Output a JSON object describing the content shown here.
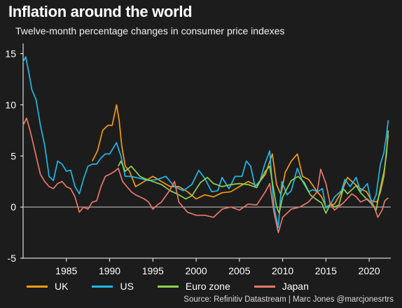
{
  "chart_data": {
    "type": "line",
    "title": "Inflation around the world",
    "subtitle": "Twelve-month percentage changes in consumer price indexes",
    "xlabel": "",
    "ylabel": "",
    "xlim": [
      1980,
      2022.5
    ],
    "ylim": [
      -5,
      16
    ],
    "x_ticks": [
      1985,
      1990,
      1995,
      2000,
      2005,
      2010,
      2015,
      2020
    ],
    "y_ticks": [
      -5,
      0,
      5,
      10,
      15
    ],
    "zero_line": true,
    "grid": false,
    "legend_position": "bottom",
    "source": "Source: Refinitiv Datastream |  Marc Jones @marcjonesrtrs",
    "series": [
      {
        "name": "UK",
        "color": "#f39c12",
        "points": [
          [
            1988,
            4.5
          ],
          [
            1988.6,
            5.5
          ],
          [
            1989.2,
            7.5
          ],
          [
            1989.8,
            8.0
          ],
          [
            1990.3,
            8.0
          ],
          [
            1990.8,
            10.0
          ],
          [
            1991.1,
            8.5
          ],
          [
            1991.4,
            6.0
          ],
          [
            1991.8,
            4.0
          ],
          [
            1992.3,
            3.5
          ],
          [
            1993,
            2.0
          ],
          [
            1994,
            2.5
          ],
          [
            1995,
            3.0
          ],
          [
            1996,
            2.5
          ],
          [
            1997,
            2.0
          ],
          [
            1998,
            2.0
          ],
          [
            1999,
            1.5
          ],
          [
            2000,
            0.8
          ],
          [
            2001,
            1.2
          ],
          [
            2002,
            1.0
          ],
          [
            2003,
            1.4
          ],
          [
            2004,
            1.5
          ],
          [
            2005,
            2.0
          ],
          [
            2006,
            2.5
          ],
          [
            2007,
            2.1
          ],
          [
            2008,
            3.2
          ],
          [
            2008.8,
            5.2
          ],
          [
            2009.3,
            2.2
          ],
          [
            2009.8,
            1.2
          ],
          [
            2010.3,
            3.4
          ],
          [
            2011.0,
            4.5
          ],
          [
            2011.7,
            5.2
          ],
          [
            2012.3,
            3.0
          ],
          [
            2013,
            2.7
          ],
          [
            2014,
            1.5
          ],
          [
            2014.5,
            1.0
          ],
          [
            2015,
            0.0
          ],
          [
            2015.5,
            0.2
          ],
          [
            2016,
            0.3
          ],
          [
            2016.8,
            1.5
          ],
          [
            2017.5,
            2.9
          ],
          [
            2018,
            2.5
          ],
          [
            2019,
            1.8
          ],
          [
            2019.7,
            1.5
          ],
          [
            2020.3,
            0.6
          ],
          [
            2020.9,
            0.5
          ],
          [
            2021.3,
            1.5
          ],
          [
            2021.7,
            3.0
          ],
          [
            2022.0,
            5.5
          ],
          [
            2022.2,
            7.0
          ]
        ]
      },
      {
        "name": "US",
        "color": "#1fb8e8",
        "points": [
          [
            1980,
            14.2
          ],
          [
            1980.3,
            14.7
          ],
          [
            1980.7,
            13.0
          ],
          [
            1981,
            11.5
          ],
          [
            1981.5,
            10.5
          ],
          [
            1982,
            8.0
          ],
          [
            1982.5,
            6.0
          ],
          [
            1983,
            3.0
          ],
          [
            1983.5,
            2.6
          ],
          [
            1984,
            4.5
          ],
          [
            1984.5,
            4.2
          ],
          [
            1985,
            3.5
          ],
          [
            1985.5,
            3.6
          ],
          [
            1986,
            2.0
          ],
          [
            1986.5,
            1.3
          ],
          [
            1987,
            2.8
          ],
          [
            1987.5,
            4.0
          ],
          [
            1988,
            4.2
          ],
          [
            1988.5,
            4.2
          ],
          [
            1989,
            4.8
          ],
          [
            1989.5,
            5.2
          ],
          [
            1990,
            5.2
          ],
          [
            1990.8,
            6.3
          ],
          [
            1991.3,
            5.0
          ],
          [
            1991.8,
            3.0
          ],
          [
            1992.5,
            3.0
          ],
          [
            1993.5,
            2.8
          ],
          [
            1994.5,
            2.6
          ],
          [
            1995.5,
            2.7
          ],
          [
            1996.5,
            3.0
          ],
          [
            1997.5,
            2.0
          ],
          [
            1998.5,
            1.6
          ],
          [
            1999.5,
            2.2
          ],
          [
            2000.3,
            3.6
          ],
          [
            2001,
            2.8
          ],
          [
            2001.8,
            1.5
          ],
          [
            2002.5,
            1.6
          ],
          [
            2003,
            2.9
          ],
          [
            2003.8,
            1.8
          ],
          [
            2004.5,
            3.0
          ],
          [
            2005.3,
            3.0
          ],
          [
            2005.8,
            4.5
          ],
          [
            2006.3,
            4.0
          ],
          [
            2006.8,
            2.0
          ],
          [
            2007.4,
            2.6
          ],
          [
            2007.9,
            4.1
          ],
          [
            2008.5,
            5.5
          ],
          [
            2009.0,
            0.0
          ],
          [
            2009.5,
            -2.0
          ],
          [
            2009.9,
            2.5
          ],
          [
            2010.5,
            1.2
          ],
          [
            2011,
            1.6
          ],
          [
            2011.7,
            3.8
          ],
          [
            2012.3,
            2.5
          ],
          [
            2013,
            1.5
          ],
          [
            2013.5,
            1.7
          ],
          [
            2014,
            1.5
          ],
          [
            2014.6,
            1.8
          ],
          [
            2015,
            -0.1
          ],
          [
            2015.5,
            0.2
          ],
          [
            2016,
            1.0
          ],
          [
            2016.8,
            1.6
          ],
          [
            2017.2,
            2.7
          ],
          [
            2017.8,
            2.0
          ],
          [
            2018.5,
            2.9
          ],
          [
            2019,
            1.5
          ],
          [
            2019.8,
            2.3
          ],
          [
            2020.3,
            0.2
          ],
          [
            2020.8,
            1.2
          ],
          [
            2021.3,
            4.2
          ],
          [
            2021.7,
            5.3
          ],
          [
            2022.0,
            7.0
          ],
          [
            2022.2,
            8.5
          ]
        ]
      },
      {
        "name": "Euro zone",
        "color": "#8fd14f",
        "points": [
          [
            1991,
            4.0
          ],
          [
            1991.3,
            4.5
          ],
          [
            1991.8,
            3.5
          ],
          [
            1992.5,
            4.0
          ],
          [
            1993,
            3.5
          ],
          [
            1993.5,
            3.0
          ],
          [
            1994,
            2.8
          ],
          [
            1995,
            2.5
          ],
          [
            1996,
            2.2
          ],
          [
            1997,
            1.6
          ],
          [
            1997.5,
            1.4
          ],
          [
            1998,
            1.2
          ],
          [
            1998.8,
            0.8
          ],
          [
            1999.5,
            1.1
          ],
          [
            2000.5,
            2.4
          ],
          [
            2001.3,
            2.9
          ],
          [
            2002,
            2.3
          ],
          [
            2003,
            2.0
          ],
          [
            2004,
            2.2
          ],
          [
            2005,
            2.3
          ],
          [
            2006,
            2.2
          ],
          [
            2007,
            1.9
          ],
          [
            2008,
            3.5
          ],
          [
            2008.5,
            4.0
          ],
          [
            2009.3,
            0.0
          ],
          [
            2009.6,
            -0.6
          ],
          [
            2010,
            1.0
          ],
          [
            2011,
            2.6
          ],
          [
            2011.8,
            3.0
          ],
          [
            2012.5,
            2.4
          ],
          [
            2013.2,
            1.2
          ],
          [
            2013.8,
            0.8
          ],
          [
            2014.5,
            0.4
          ],
          [
            2015,
            -0.6
          ],
          [
            2015.5,
            0.3
          ],
          [
            2016,
            0.0
          ],
          [
            2016.5,
            0.2
          ],
          [
            2017,
            1.8
          ],
          [
            2017.5,
            1.3
          ],
          [
            2018.5,
            2.1
          ],
          [
            2019,
            1.4
          ],
          [
            2019.7,
            0.8
          ],
          [
            2020.3,
            0.3
          ],
          [
            2020.8,
            -0.3
          ],
          [
            2021.3,
            1.9
          ],
          [
            2021.7,
            3.4
          ],
          [
            2022.0,
            5.1
          ],
          [
            2022.2,
            7.5
          ]
        ]
      },
      {
        "name": "Japan",
        "color": "#e8786a",
        "points": [
          [
            1980,
            8.0
          ],
          [
            1980.4,
            8.7
          ],
          [
            1980.8,
            7.5
          ],
          [
            1981,
            6.8
          ],
          [
            1981.5,
            5.0
          ],
          [
            1982,
            3.2
          ],
          [
            1982.5,
            2.5
          ],
          [
            1983,
            2.0
          ],
          [
            1983.5,
            1.8
          ],
          [
            1984,
            2.3
          ],
          [
            1984.5,
            2.5
          ],
          [
            1985,
            2.0
          ],
          [
            1985.5,
            1.8
          ],
          [
            1986,
            1.0
          ],
          [
            1986.5,
            -0.5
          ],
          [
            1987,
            0.0
          ],
          [
            1987.5,
            -0.2
          ],
          [
            1988,
            0.5
          ],
          [
            1988.5,
            0.6
          ],
          [
            1989,
            2.0
          ],
          [
            1989.5,
            3.0
          ],
          [
            1990,
            3.2
          ],
          [
            1990.6,
            3.5
          ],
          [
            1991,
            3.8
          ],
          [
            1991.5,
            2.5
          ],
          [
            1992,
            2.0
          ],
          [
            1992.5,
            1.5
          ],
          [
            1993,
            1.2
          ],
          [
            1993.5,
            1.0
          ],
          [
            1994,
            0.8
          ],
          [
            1994.5,
            0.5
          ],
          [
            1995,
            -0.2
          ],
          [
            1995.5,
            0.2
          ],
          [
            1996,
            0.5
          ],
          [
            1997,
            1.7
          ],
          [
            1997.5,
            2.5
          ],
          [
            1998,
            0.5
          ],
          [
            1999,
            -0.5
          ],
          [
            2000,
            -0.8
          ],
          [
            2001,
            -0.8
          ],
          [
            2002,
            -1.0
          ],
          [
            2003,
            -0.2
          ],
          [
            2004,
            0.0
          ],
          [
            2005,
            -0.3
          ],
          [
            2006,
            0.3
          ],
          [
            2007,
            0.2
          ],
          [
            2008,
            1.5
          ],
          [
            2008.5,
            2.3
          ],
          [
            2009,
            -0.5
          ],
          [
            2009.5,
            -2.5
          ],
          [
            2010,
            -1.0
          ],
          [
            2011,
            -0.2
          ],
          [
            2012,
            0.0
          ],
          [
            2013,
            0.5
          ],
          [
            2013.5,
            1.0
          ],
          [
            2014,
            1.5
          ],
          [
            2014.4,
            3.7
          ],
          [
            2015,
            2.3
          ],
          [
            2015.5,
            0.3
          ],
          [
            2016,
            -0.3
          ],
          [
            2017,
            0.4
          ],
          [
            2018,
            1.3
          ],
          [
            2018.5,
            1.0
          ],
          [
            2019,
            0.5
          ],
          [
            2019.8,
            0.8
          ],
          [
            2020.5,
            0.2
          ],
          [
            2021,
            -1.0
          ],
          [
            2021.5,
            -0.3
          ],
          [
            2021.8,
            0.6
          ],
          [
            2022.2,
            0.9
          ]
        ]
      }
    ]
  }
}
